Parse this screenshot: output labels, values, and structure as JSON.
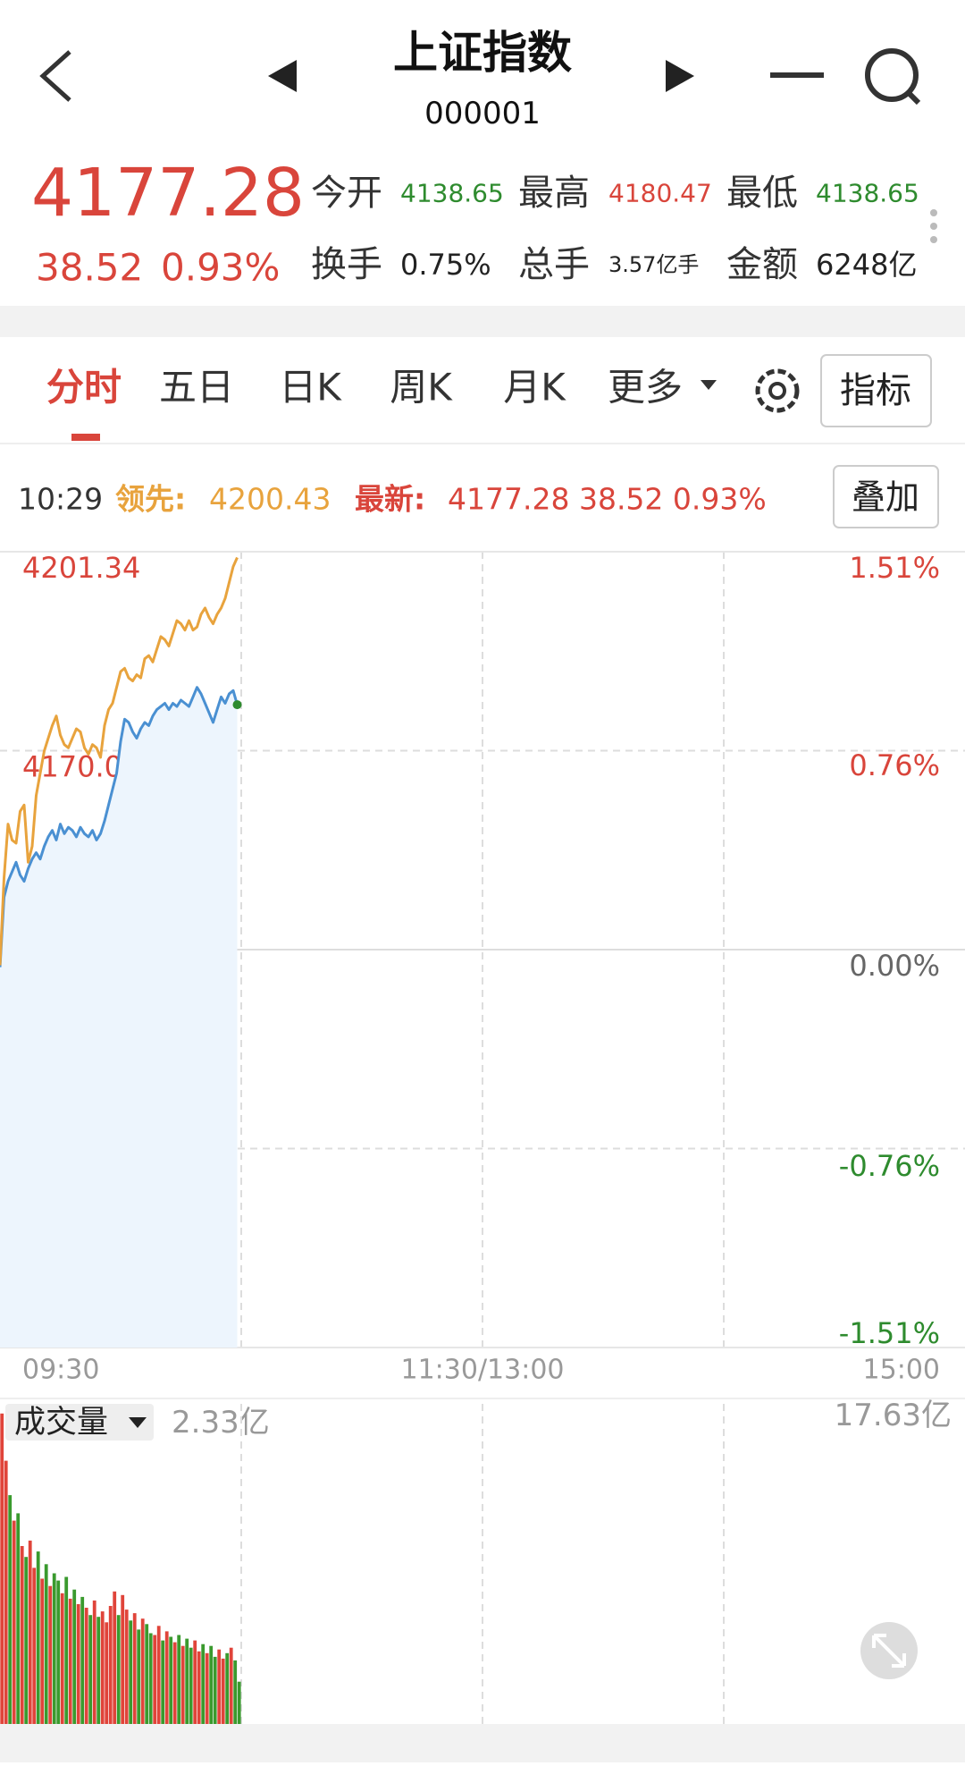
{
  "header": {
    "title": "上证指数",
    "code": "000001"
  },
  "quote": {
    "price": "4177.28",
    "change": "38.52",
    "change_pct": "0.93%",
    "stats": [
      {
        "label": "今开",
        "value": "4138.65",
        "color": "#2e8b2e"
      },
      {
        "label": "最高",
        "value": "4180.47",
        "color": "#d9453b"
      },
      {
        "label": "最低",
        "value": "4138.65",
        "color": "#2e8b2e"
      },
      {
        "label": "换手",
        "value": "0.75%",
        "color": "#222222"
      },
      {
        "label": "总手",
        "value": "3.57亿手",
        "color": "#222222"
      },
      {
        "label": "金额",
        "value": "6248亿",
        "color": "#222222"
      }
    ]
  },
  "tabs": [
    "分时",
    "五日",
    "日K",
    "周K",
    "月K",
    "更多"
  ],
  "indicator_button": "指标",
  "info": {
    "time": "10:29",
    "lead_label": "领先:",
    "lead_value": "4200.43",
    "latest_label": "最新:",
    "latest_value": "4177.28 38.52 0.93%",
    "overlay_button": "叠加"
  },
  "chart_data": [
    {
      "type": "line",
      "x": [
        0,
        1,
        2,
        3,
        4,
        5,
        6,
        7,
        8,
        9,
        10,
        11,
        12,
        13,
        14,
        15,
        16,
        17,
        18,
        19,
        20,
        21,
        22,
        23,
        24,
        25,
        26,
        27,
        28,
        29,
        30,
        31,
        32,
        33,
        34,
        35,
        36,
        37,
        38,
        39,
        40,
        41,
        42,
        43,
        44,
        45,
        46,
        47,
        48,
        49,
        50,
        51,
        52,
        53,
        54,
        55,
        56,
        57,
        58,
        59
      ],
      "xlim": [
        0,
        240
      ],
      "xticks": [
        {
          "value": 0,
          "label": "09:30"
        },
        {
          "value": 120,
          "label": "11:30/13:00"
        },
        {
          "value": 240,
          "label": "15:00"
        }
      ],
      "ylim": [
        4076.18,
        4201.34
      ],
      "yticks": [
        4076.18,
        4107.47,
        4138.76,
        4170.05,
        4201.34
      ],
      "y2lim": [
        -1.51,
        1.51
      ],
      "y2ticks": [
        {
          "value": -1.51,
          "label": "-1.51%"
        },
        {
          "value": -0.76,
          "label": "-0.76%"
        },
        {
          "value": 0,
          "label": "0.00%"
        },
        {
          "value": 0.76,
          "label": "0.76%"
        },
        {
          "value": 1.51,
          "label": "1.51%"
        }
      ],
      "grid": true,
      "series": [
        {
          "color": "#e8a33d",
          "values": [
            4136.3,
            4150.0,
            4158.5,
            4156.0,
            4155.5,
            4160.5,
            4161.5,
            4152.5,
            4155.0,
            4163.0,
            4166.5,
            4170.0,
            4172.0,
            4174.0,
            4175.5,
            4172.5,
            4171.0,
            4170.5,
            4172.0,
            4173.5,
            4173.0,
            4170.5,
            4169.5,
            4171.0,
            4170.5,
            4169.0,
            4174.0,
            4176.5,
            4177.5,
            4180.0,
            4182.5,
            4183.0,
            4181.5,
            4181.0,
            4182.0,
            4181.5,
            4184.5,
            4185.0,
            4184.0,
            4186.0,
            4188.0,
            4187.5,
            4186.5,
            4188.5,
            4190.5,
            4190.0,
            4189.0,
            4190.5,
            4189.0,
            4189.5,
            4191.5,
            4192.5,
            4191.0,
            4190.0,
            4191.5,
            4192.5,
            4194.0,
            4196.5,
            4199.0,
            4200.43
          ]
        },
        {
          "color": "#4a90d2",
          "fill": "#edf5fd",
          "values": [
            4136.0,
            4147.0,
            4149.5,
            4151.0,
            4152.5,
            4150.5,
            4149.5,
            4151.5,
            4153.0,
            4154.0,
            4153.0,
            4155.0,
            4156.5,
            4157.5,
            4156.0,
            4158.5,
            4157.0,
            4158.0,
            4157.5,
            4156.5,
            4158.0,
            4157.0,
            4156.5,
            4157.5,
            4156.0,
            4157.0,
            4159.0,
            4161.5,
            4164.0,
            4166.5,
            4171.5,
            4175.0,
            4174.5,
            4173.0,
            4172.0,
            4173.5,
            4174.5,
            4174.0,
            4175.5,
            4176.5,
            4177.0,
            4177.5,
            4176.5,
            4177.5,
            4177.0,
            4178.0,
            4177.5,
            4177.0,
            4178.5,
            4180.0,
            4179.0,
            4177.5,
            4176.0,
            4174.5,
            4176.5,
            4178.5,
            4177.5,
            4179.0,
            4179.5,
            4177.28
          ]
        }
      ]
    },
    {
      "type": "bar",
      "label": "成交量",
      "current_label": "2.33亿",
      "ylim": [
        0,
        17.63
      ],
      "yticks": [
        {
          "value": 17.63,
          "label": "17.63亿"
        }
      ],
      "values": [
        17.1,
        14.5,
        12.6,
        11.2,
        11.6,
        9.8,
        9.2,
        10.1,
        8.6,
        9.5,
        8.0,
        8.8,
        7.6,
        8.3,
        7.9,
        7.2,
        8.1,
        6.9,
        7.4,
        6.6,
        7.0,
        6.4,
        6.0,
        6.8,
        5.9,
        6.2,
        5.6,
        6.5,
        7.3,
        6.0,
        7.1,
        6.3,
        5.7,
        6.1,
        5.2,
        5.8,
        5.5,
        5.0,
        4.9,
        5.4,
        4.6,
        5.1,
        4.8,
        4.5,
        4.9,
        4.3,
        4.7,
        4.2,
        4.6,
        4.0,
        4.4,
        3.9,
        4.3,
        3.7,
        4.1,
        3.6,
        3.9,
        4.2,
        3.5,
        2.33
      ],
      "colors": [
        "#e0443a",
        "#e0443a",
        "#3a9a2e",
        "#e0443a",
        "#3a9a2e",
        "#e0443a",
        "#3a9a2e",
        "#e0443a",
        "#e0443a",
        "#3a9a2e",
        "#e0443a",
        "#3a9a2e",
        "#e0443a",
        "#3a9a2e",
        "#3a9a2e",
        "#e0443a",
        "#3a9a2e",
        "#e0443a",
        "#3a9a2e",
        "#e0443a",
        "#3a9a2e",
        "#e0443a",
        "#3a9a2e",
        "#e0443a",
        "#3a9a2e",
        "#e0443a",
        "#e0443a",
        "#e0443a",
        "#e0443a",
        "#3a9a2e",
        "#e0443a",
        "#e0443a",
        "#3a9a2e",
        "#e0443a",
        "#3a9a2e",
        "#e0443a",
        "#3a9a2e",
        "#3a9a2e",
        "#e0443a",
        "#e0443a",
        "#3a9a2e",
        "#e0443a",
        "#3a9a2e",
        "#e0443a",
        "#3a9a2e",
        "#e0443a",
        "#3a9a2e",
        "#3a9a2e",
        "#e0443a",
        "#e0443a",
        "#3a9a2e",
        "#e0443a",
        "#3a9a2e",
        "#3a9a2e",
        "#e0443a",
        "#e0443a",
        "#3a9a2e",
        "#e0443a",
        "#3a9a2e",
        "#3a9a2e"
      ]
    }
  ]
}
